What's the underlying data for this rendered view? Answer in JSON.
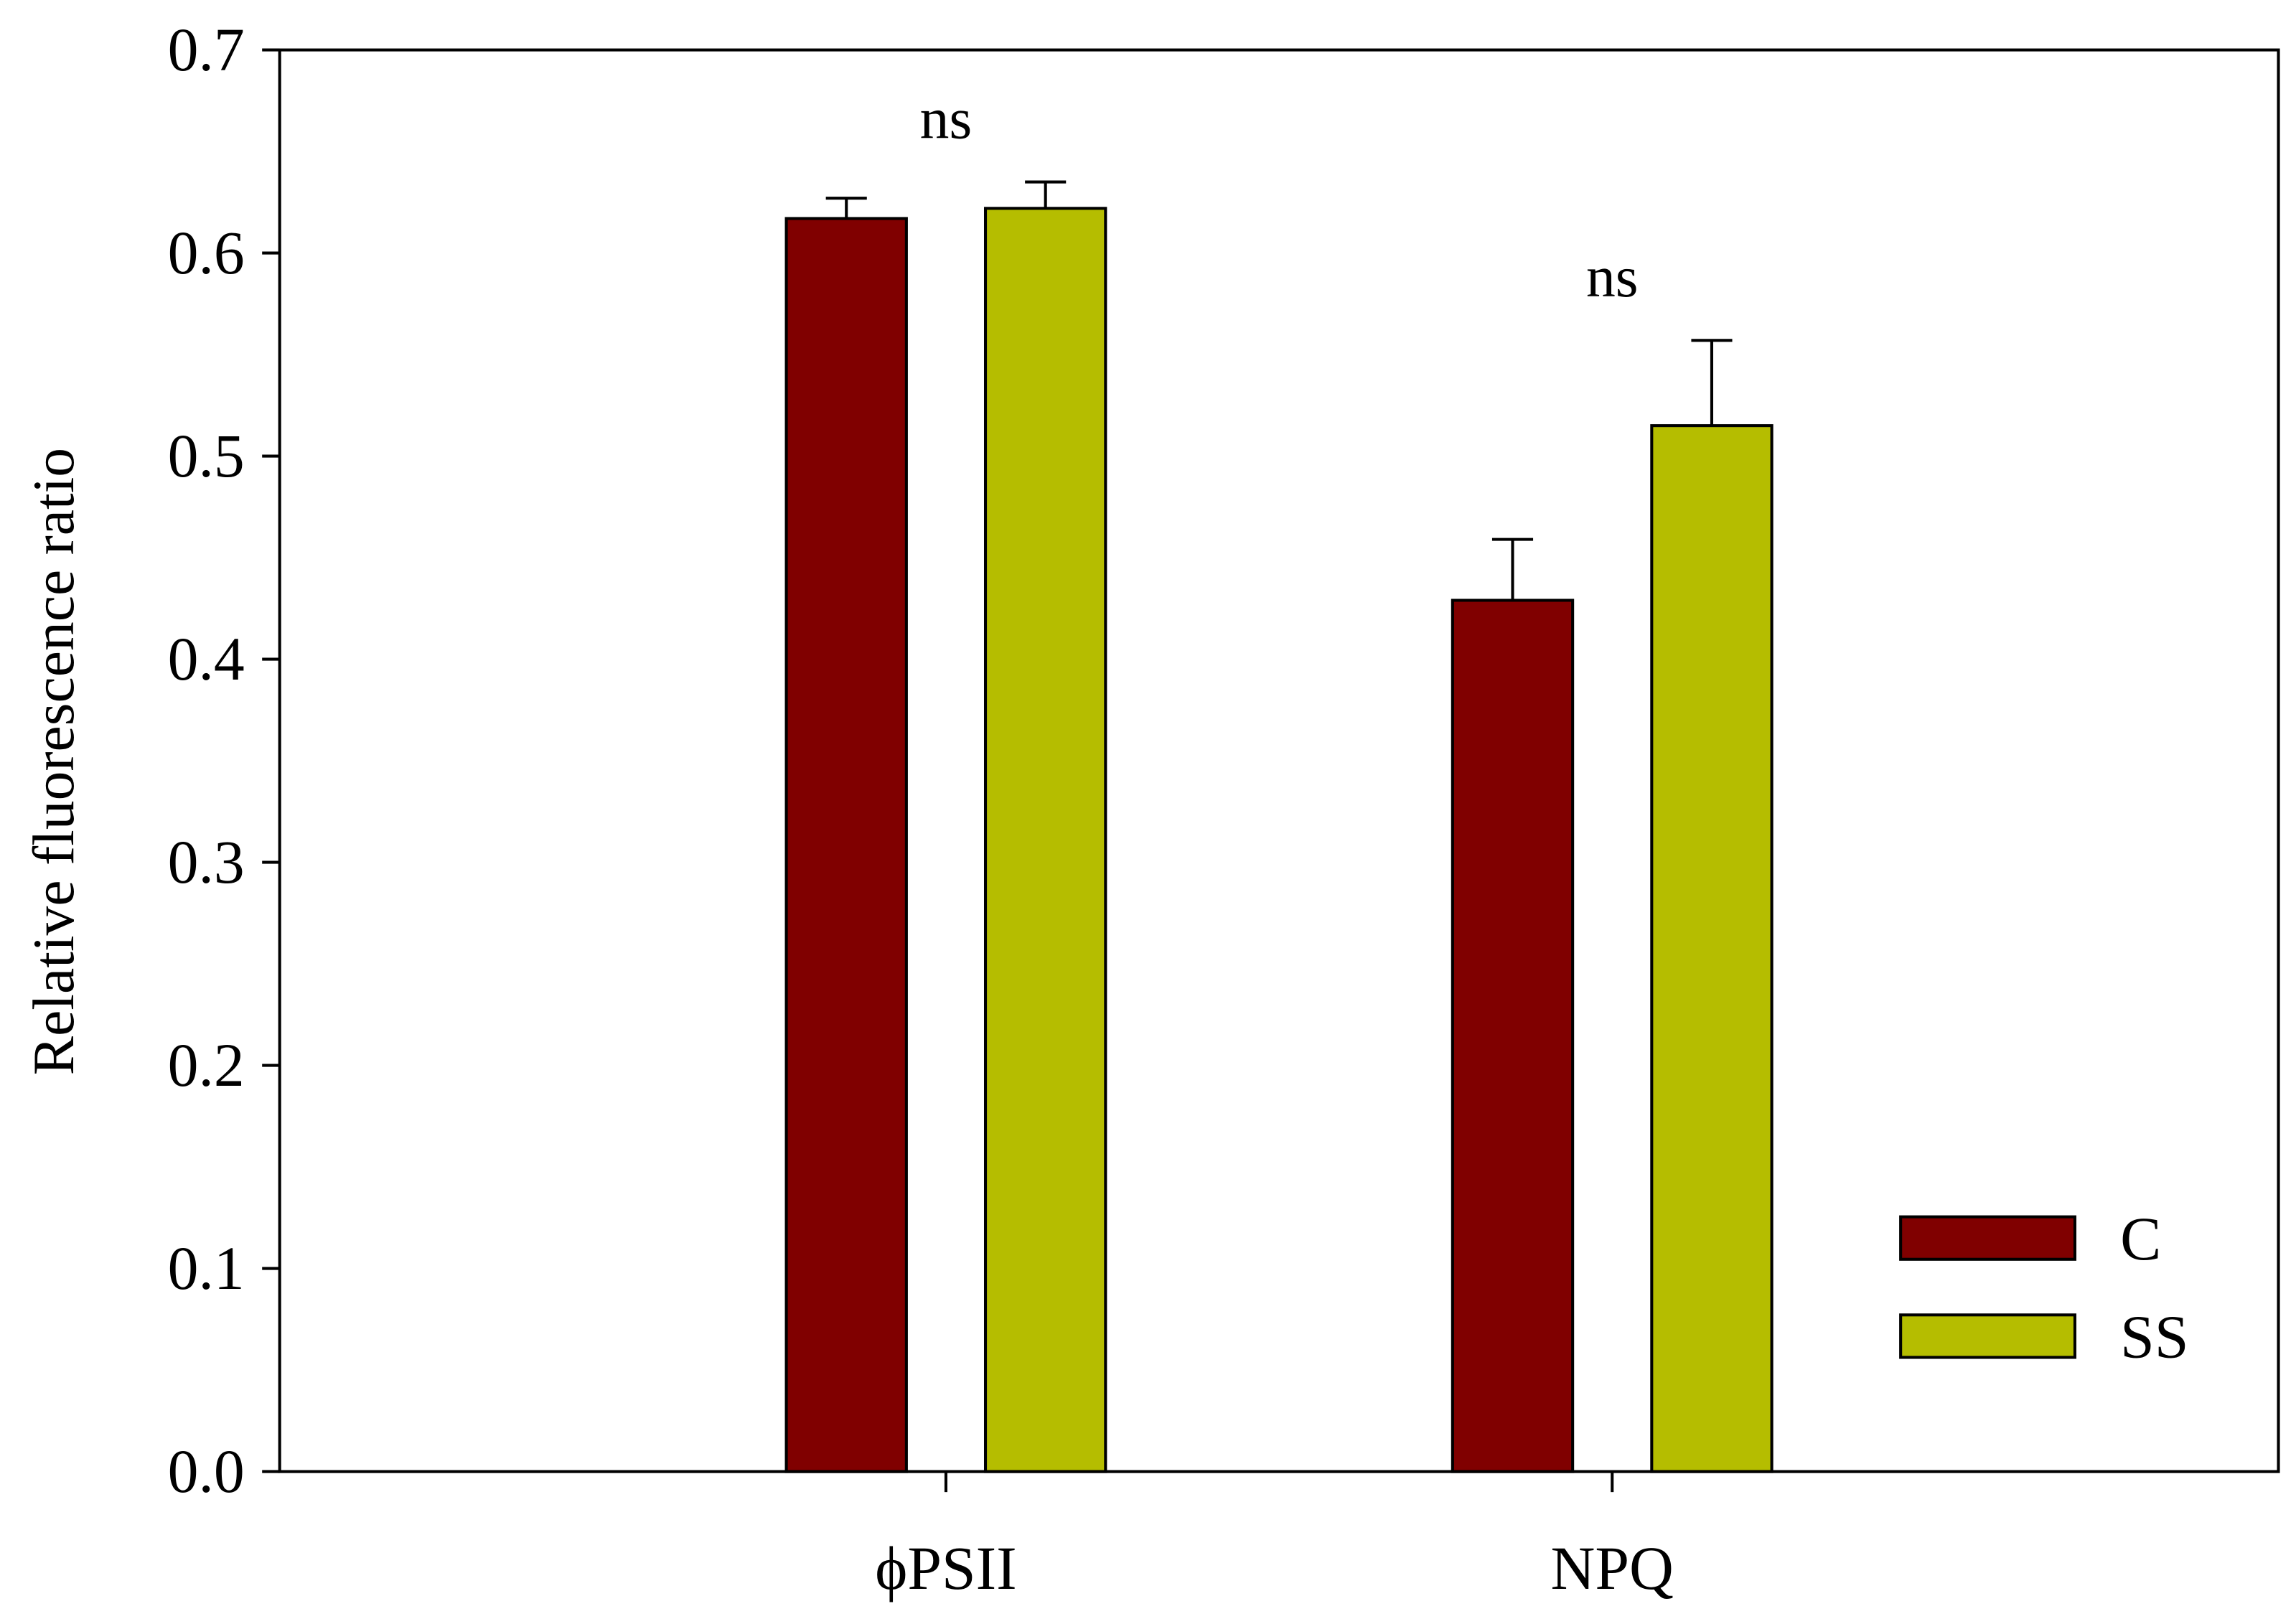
{
  "chart_data": {
    "type": "bar",
    "y_label": "Relative fluorescence ratio",
    "categories": [
      "ϕPSII",
      "NPQ"
    ],
    "series": [
      {
        "name": "C",
        "color": "#800000",
        "values": [
          0.617,
          0.429
        ],
        "errors": [
          0.01,
          0.03
        ]
      },
      {
        "name": "SS",
        "color": "#b5bd00",
        "values": [
          0.622,
          0.515
        ],
        "errors": [
          0.013,
          0.042
        ]
      }
    ],
    "annotations": [
      "ns",
      "ns"
    ],
    "ylim": [
      0,
      0.7
    ],
    "yticks": [
      {
        "value": 0,
        "label": "0.0"
      },
      0.1,
      0.2,
      0.3,
      0.4,
      0.5,
      0.6,
      0.7
    ],
    "legend": "lower right",
    "grid": false
  }
}
